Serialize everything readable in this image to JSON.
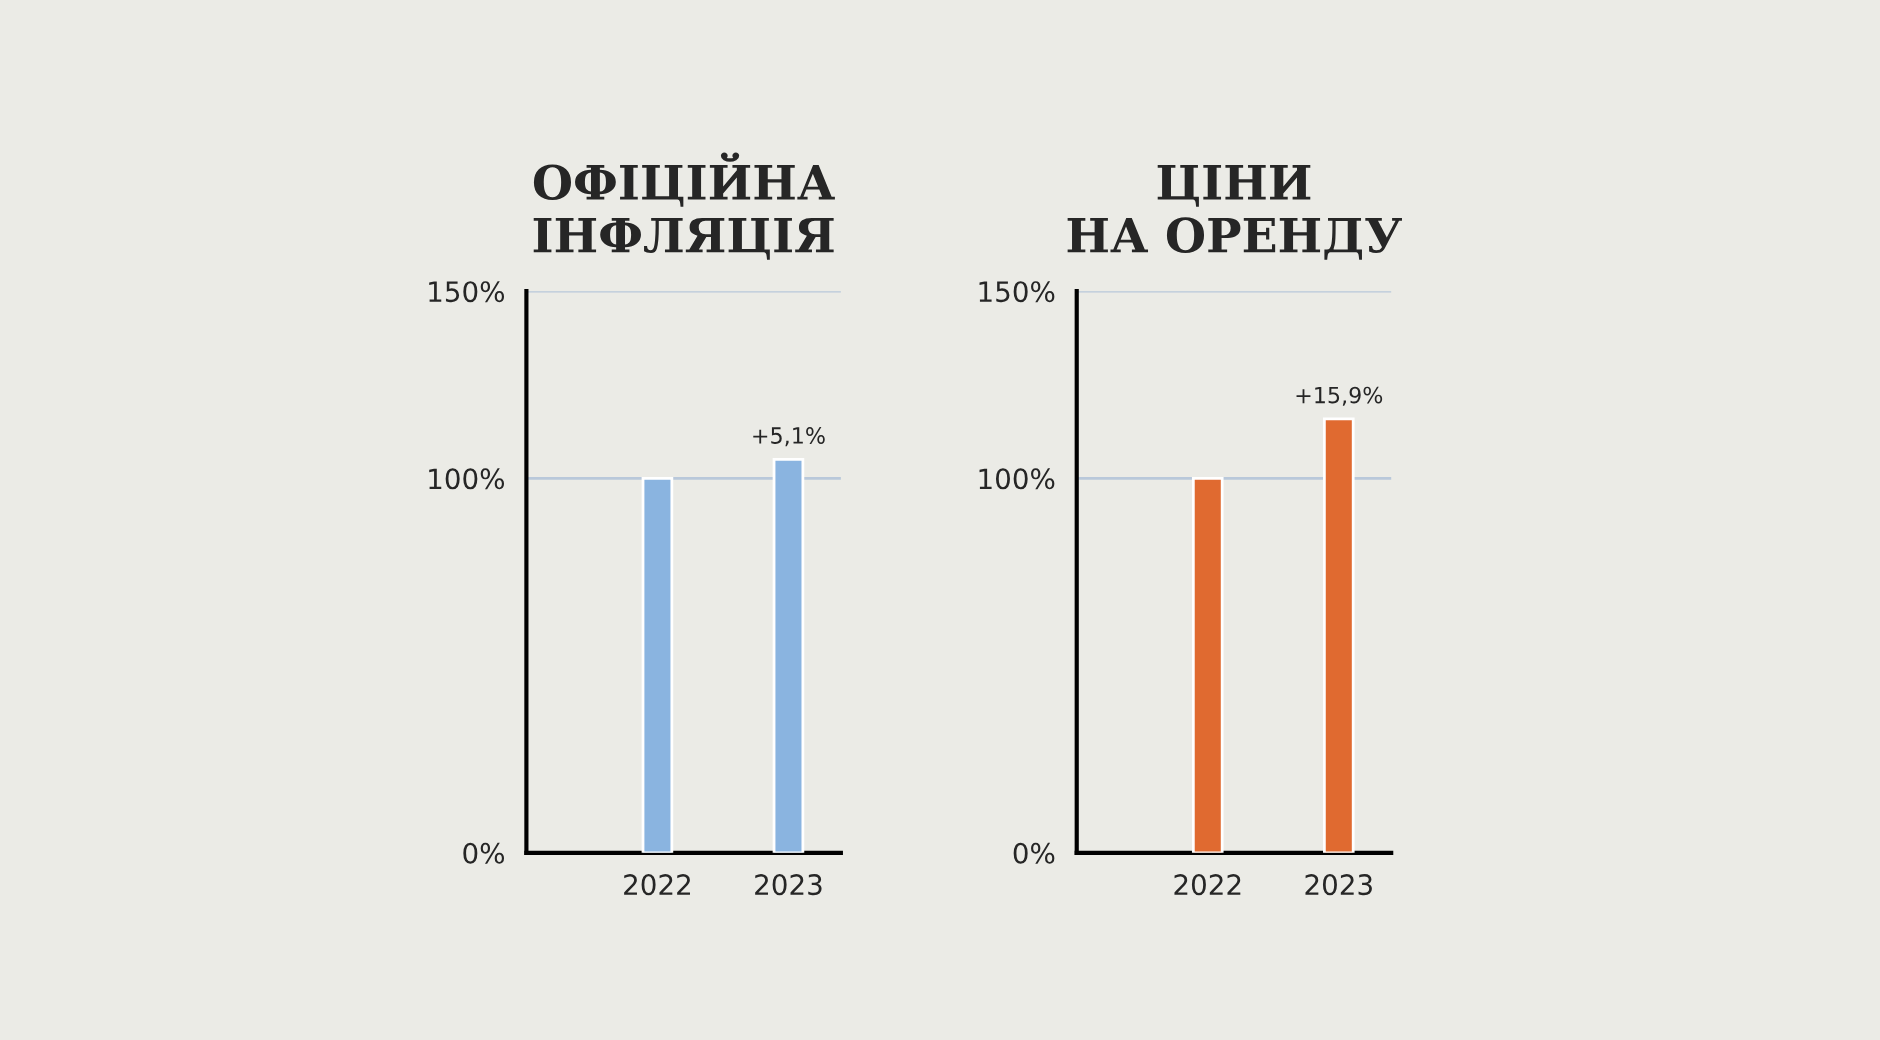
{
  "chart_data": [
    {
      "type": "bar",
      "title": "ОФІЦІЙНА\nІНФЛЯЦІЯ",
      "categories": [
        "2022",
        "2023"
      ],
      "values": [
        100,
        105.1
      ],
      "color": "#8ab4e0",
      "annotations": [
        {
          "text": "+5,1%",
          "x": "2023",
          "y": 105.1
        }
      ],
      "ylim": [
        0,
        150
      ],
      "yticks": [
        {
          "value": 0,
          "label": "0%"
        },
        {
          "value": 100,
          "label": "100%"
        },
        {
          "value": 150,
          "label": "150%"
        }
      ],
      "grid": "y"
    },
    {
      "type": "bar",
      "title": "ЦІНИ\nНА ОРЕНДУ",
      "categories": [
        "2022",
        "2023"
      ],
      "values": [
        100,
        115.9
      ],
      "color": "#e06a30",
      "annotations": [
        {
          "text": "+15,9%",
          "x": "2023",
          "y": 115.9
        }
      ],
      "ylim": [
        0,
        150
      ],
      "yticks": [
        {
          "value": 0,
          "label": "0%"
        },
        {
          "value": 100,
          "label": "100%"
        },
        {
          "value": 150,
          "label": "150%"
        }
      ],
      "grid": "y"
    }
  ]
}
